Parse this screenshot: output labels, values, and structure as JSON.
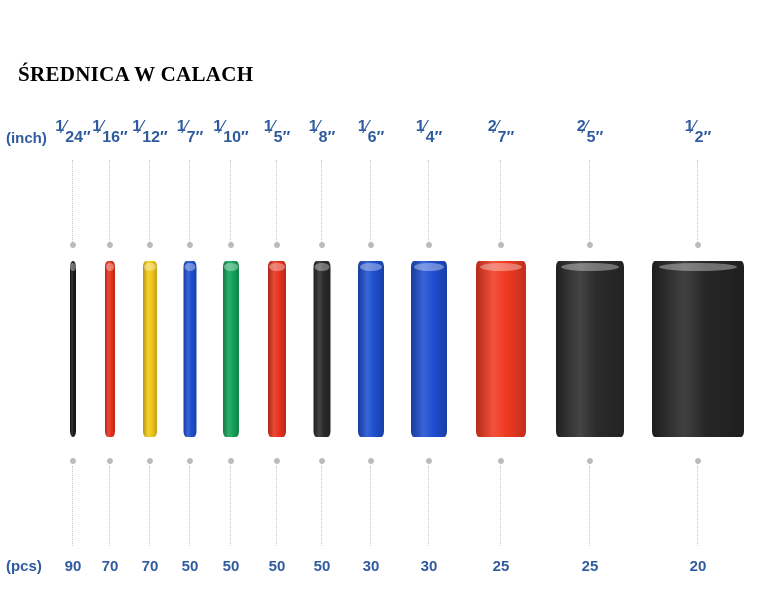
{
  "title": "ŚREDNICA W CALACH",
  "inch_label": "(inch)",
  "pcs_label": "(pcs)",
  "label_color": "#2f5b9e",
  "tubes": [
    {
      "num": "1",
      "den": "24″",
      "pcs": "90",
      "color": "#1a1a1a"
    },
    {
      "num": "1",
      "den": "16″",
      "pcs": "70",
      "color": "#e8321c"
    },
    {
      "num": "1",
      "den": "12″",
      "pcs": "70",
      "color": "#f2c918"
    },
    {
      "num": "1",
      "den": "7″",
      "pcs": "50",
      "color": "#1f4fd1"
    },
    {
      "num": "1",
      "den": "10″",
      "pcs": "50",
      "color": "#14a35a"
    },
    {
      "num": "1",
      "den": "5″",
      "pcs": "50",
      "color": "#e8321c"
    },
    {
      "num": "1",
      "den": "8″",
      "pcs": "50",
      "color": "#2a2a2a"
    },
    {
      "num": "1",
      "den": "6″",
      "pcs": "30",
      "color": "#1f4fd1"
    },
    {
      "num": "1",
      "den": "4″",
      "pcs": "30",
      "color": "#1f4fd1"
    },
    {
      "num": "2",
      "den": "7″",
      "pcs": "25",
      "color": "#f03a22"
    },
    {
      "num": "2",
      "den": "5″",
      "pcs": "25",
      "color": "#2b2b2b"
    },
    {
      "num": "1",
      "den": "2″",
      "pcs": "20",
      "color": "#262626"
    }
  ]
}
